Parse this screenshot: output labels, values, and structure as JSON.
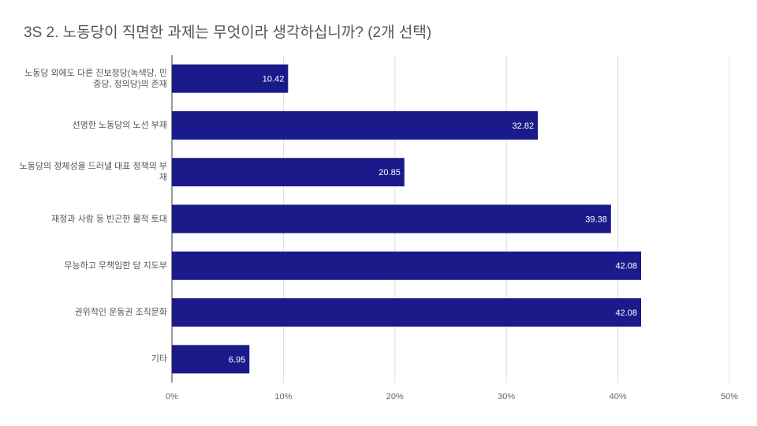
{
  "chart_data": {
    "type": "bar",
    "orientation": "horizontal",
    "title": "3S 2. 노동당이 직면한 과제는 무엇이라 생각하십니까? (2개 선택)",
    "categories": [
      "노동당 외에도 다른 진보정당(녹색당, 민중당, 정의당)의 존재",
      "선명한 노동당의 노선 부재",
      "노동당의 정체성을 드러낼 대표 정책의 부재",
      "재정과 사람 등 빈곤한 물적 토대",
      "무능하고 무책임한 당 지도부",
      "권위적인 운동권 조직문화",
      "기타"
    ],
    "values": [
      10.42,
      32.82,
      20.85,
      39.38,
      42.08,
      42.08,
      6.95
    ],
    "color": "#1a1a8a",
    "xlim": [
      0,
      50
    ],
    "xticks": [
      {
        "value": 0,
        "label": "0%"
      },
      {
        "value": 10,
        "label": "10%"
      },
      {
        "value": 20,
        "label": "20%"
      },
      {
        "value": 30,
        "label": "30%"
      },
      {
        "value": 40,
        "label": "40%"
      },
      {
        "value": 50,
        "label": "50%"
      }
    ],
    "grid": true
  }
}
